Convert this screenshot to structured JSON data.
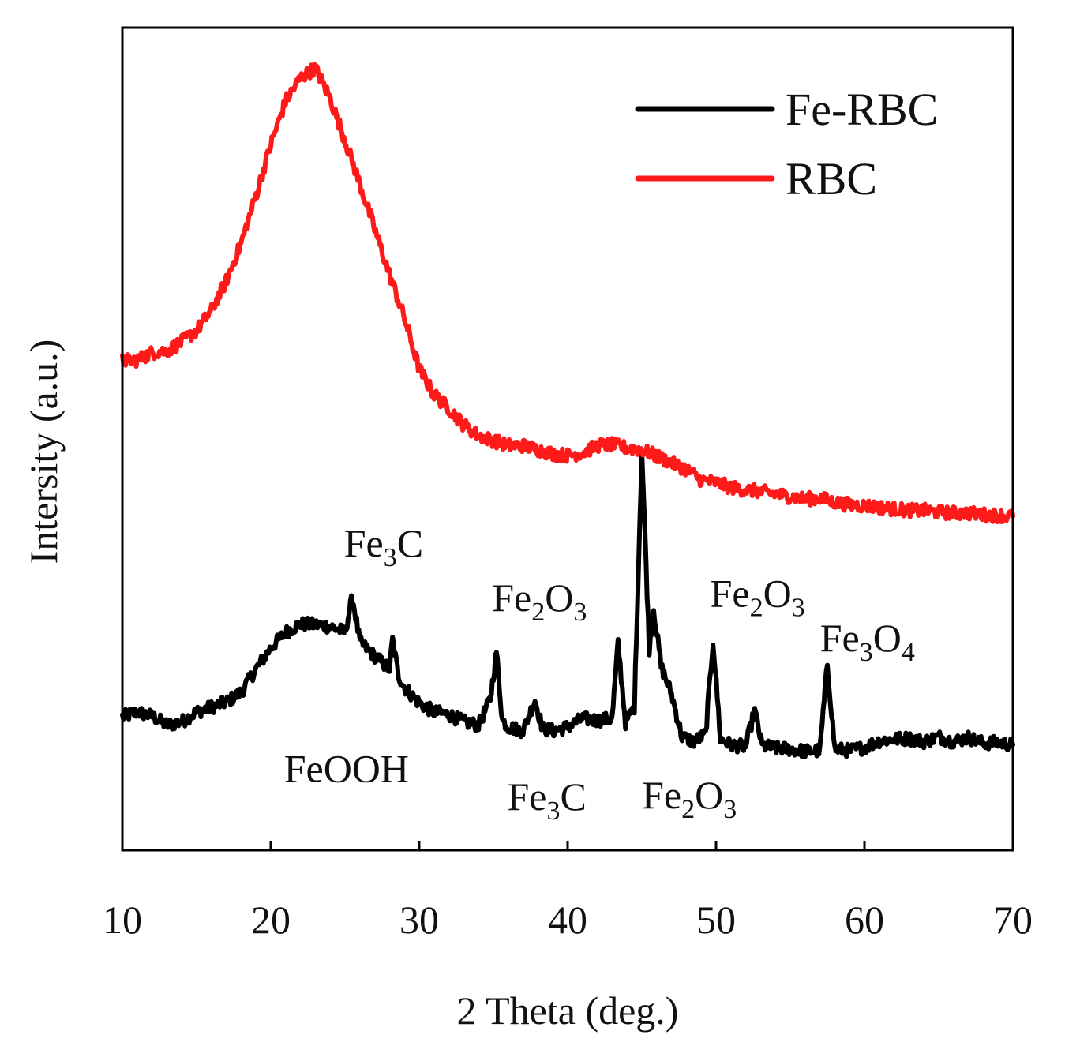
{
  "chart_data": {
    "type": "line",
    "xlabel": "2 Theta (deg.)",
    "ylabel": "Intersity (a.u.)",
    "xlim": [
      10,
      70
    ],
    "ylim": [
      0,
      100
    ],
    "xticks": [
      "10",
      "20",
      "30",
      "40",
      "50",
      "60",
      "70"
    ],
    "yticks_shown": false,
    "grid": false,
    "legend": {
      "position": "top-right",
      "entries": [
        "Fe-RBC",
        "RBC"
      ]
    },
    "series": [
      {
        "name": "Fe-RBC",
        "color": "#000000",
        "points": [
          [
            10,
            16.2
          ],
          [
            11,
            16.8
          ],
          [
            12,
            16.3
          ],
          [
            13,
            15.2
          ],
          [
            14,
            15.6
          ],
          [
            15,
            16.8
          ],
          [
            16,
            17.4
          ],
          [
            17,
            18.0
          ],
          [
            18,
            19.2
          ],
          [
            19,
            22.0
          ],
          [
            20,
            24.6
          ],
          [
            21,
            26.5
          ],
          [
            22,
            27.5
          ],
          [
            23,
            27.4
          ],
          [
            24,
            27.2
          ],
          [
            25,
            26.5
          ],
          [
            25.5,
            30.8
          ],
          [
            26,
            25.3
          ],
          [
            27,
            23.6
          ],
          [
            28,
            22.0
          ],
          [
            28.2,
            25.6
          ],
          [
            28.6,
            21.3
          ],
          [
            29,
            19.8
          ],
          [
            30,
            17.9
          ],
          [
            31,
            16.8
          ],
          [
            32,
            16.5
          ],
          [
            33,
            15.6
          ],
          [
            34,
            15.2
          ],
          [
            34.8,
            18.4
          ],
          [
            35.2,
            24.2
          ],
          [
            35.6,
            15.8
          ],
          [
            36,
            15.0
          ],
          [
            37,
            14.5
          ],
          [
            37.8,
            18.3
          ],
          [
            38.3,
            14.8
          ],
          [
            39,
            14.5
          ],
          [
            40,
            15.0
          ],
          [
            41,
            16.0
          ],
          [
            42,
            15.8
          ],
          [
            43,
            16.0
          ],
          [
            43.4,
            25.2
          ],
          [
            43.9,
            15.5
          ],
          [
            44.5,
            17.4
          ],
          [
            45.0,
            48.6
          ],
          [
            45.5,
            24.5
          ],
          [
            45.8,
            29.4
          ],
          [
            46.3,
            22.3
          ],
          [
            47,
            19.0
          ],
          [
            47.7,
            13.8
          ],
          [
            48.5,
            13.2
          ],
          [
            49.3,
            14.1
          ],
          [
            49.8,
            25.5
          ],
          [
            50.3,
            13.5
          ],
          [
            51,
            12.8
          ],
          [
            52,
            12.6
          ],
          [
            52.6,
            17.0
          ],
          [
            53.1,
            12.7
          ],
          [
            54,
            12.4
          ],
          [
            55,
            12.3
          ],
          [
            56,
            12.0
          ],
          [
            57,
            12.1
          ],
          [
            57.5,
            22.7
          ],
          [
            58,
            12.3
          ],
          [
            59,
            12.1
          ],
          [
            60,
            12.5
          ],
          [
            61,
            13.3
          ],
          [
            62,
            13.5
          ],
          [
            63,
            13.6
          ],
          [
            64,
            13.2
          ],
          [
            65,
            13.8
          ],
          [
            66,
            13.2
          ],
          [
            67,
            13.7
          ],
          [
            68,
            13.0
          ],
          [
            69,
            13.1
          ],
          [
            70,
            12.8
          ]
        ]
      },
      {
        "name": "RBC",
        "color": "#ff1a1a",
        "points": [
          [
            10,
            59.5
          ],
          [
            11,
            59.6
          ],
          [
            12,
            60.5
          ],
          [
            13,
            60.7
          ],
          [
            14,
            61.8
          ],
          [
            15,
            63.2
          ],
          [
            16,
            65.6
          ],
          [
            17,
            69.2
          ],
          [
            18,
            73.8
          ],
          [
            19,
            79.6
          ],
          [
            20,
            85.8
          ],
          [
            21,
            91.1
          ],
          [
            22,
            93.9
          ],
          [
            23,
            95.1
          ],
          [
            24,
            91.4
          ],
          [
            25,
            86.3
          ],
          [
            26,
            81.0
          ],
          [
            27,
            75.5
          ],
          [
            28,
            70.0
          ],
          [
            29,
            64.7
          ],
          [
            30,
            58.5
          ],
          [
            31,
            55.4
          ],
          [
            32,
            53.7
          ],
          [
            33,
            51.7
          ],
          [
            34,
            50.4
          ],
          [
            35,
            49.8
          ],
          [
            36,
            49.2
          ],
          [
            37,
            49.2
          ],
          [
            38,
            48.7
          ],
          [
            39,
            48.2
          ],
          [
            40,
            48.0
          ],
          [
            41,
            48.3
          ],
          [
            42,
            49.2
          ],
          [
            43,
            49.3
          ],
          [
            44,
            48.9
          ],
          [
            45,
            48.7
          ],
          [
            46,
            47.9
          ],
          [
            47,
            47.1
          ],
          [
            48,
            46.3
          ],
          [
            49,
            45.0
          ],
          [
            50,
            44.7
          ],
          [
            51,
            44.1
          ],
          [
            52,
            43.8
          ],
          [
            53,
            43.6
          ],
          [
            54,
            43.3
          ],
          [
            55,
            43.0
          ],
          [
            56,
            42.7
          ],
          [
            57,
            42.8
          ],
          [
            58,
            42.3
          ],
          [
            59,
            42.0
          ],
          [
            60,
            41.9
          ],
          [
            61,
            41.7
          ],
          [
            62,
            41.5
          ],
          [
            63,
            41.3
          ],
          [
            64,
            41.3
          ],
          [
            65,
            41.1
          ],
          [
            66,
            41.0
          ],
          [
            67,
            41.0
          ],
          [
            68,
            40.8
          ],
          [
            69,
            40.7
          ],
          [
            70,
            40.6
          ]
        ]
      }
    ],
    "annotations": [
      {
        "base": "Fe",
        "sub1": "3",
        "mid": "C",
        "sub2": "",
        "x": 27.6,
        "y": 35.7
      },
      {
        "base": "Fe",
        "sub1": "2",
        "mid": "O",
        "sub2": "3",
        "x": 38.1,
        "y": 29.1
      },
      {
        "base": "Fe",
        "sub1": "2",
        "mid": "O",
        "sub2": "3",
        "x": 52.8,
        "y": 29.6
      },
      {
        "base": "Fe",
        "sub1": "3",
        "mid": "O",
        "sub2": "4",
        "x": 60.2,
        "y": 24.2
      },
      {
        "base": "FeOOH",
        "sub1": "",
        "mid": "",
        "sub2": "",
        "x": 25.1,
        "y": 8.3
      },
      {
        "base": "Fe",
        "sub1": "3",
        "mid": "C",
        "sub2": "",
        "x": 38.6,
        "y": 4.9
      },
      {
        "base": "Fe",
        "sub1": "2",
        "mid": "O",
        "sub2": "3",
        "x": 48.2,
        "y": 5.1
      }
    ]
  }
}
